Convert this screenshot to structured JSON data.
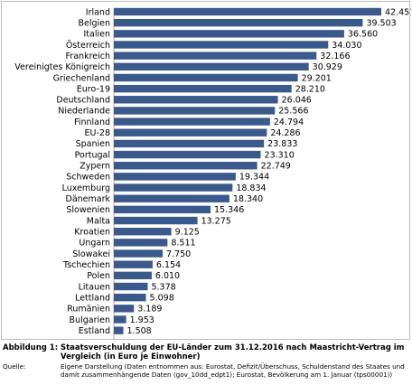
{
  "chart_data": {
    "type": "bar",
    "orientation": "horizontal",
    "title": "",
    "xlabel": "",
    "ylabel": "",
    "xlim": [
      0,
      42451
    ],
    "grid": false,
    "bar_color": "#3a5a8c",
    "categories": [
      "Irland",
      "Belgien",
      "Italien",
      "Österreich",
      "Frankreich",
      "Vereinigtes Königreich",
      "Griechenland",
      "Euro-19",
      "Deutschland",
      "Niederlande",
      "Finnland",
      "EU-28",
      "Spanien",
      "Portugal",
      "Zypern",
      "Schweden",
      "Luxemburg",
      "Dänemark",
      "Slowenien",
      "Malta",
      "Kroatien",
      "Ungarn",
      "Slowakei",
      "Tschechien",
      "Polen",
      "Litauen",
      "Lettland",
      "Rumänien",
      "Bulgarien",
      "Estland"
    ],
    "values": [
      42451,
      39503,
      36560,
      34030,
      32166,
      30929,
      29201,
      28210,
      26046,
      25566,
      24794,
      24286,
      23833,
      23310,
      22749,
      19344,
      18834,
      18340,
      15346,
      13275,
      9125,
      8511,
      7750,
      6154,
      6010,
      5378,
      5098,
      3189,
      1953,
      1508
    ],
    "value_labels": [
      "42.451",
      "39.503",
      "36.560",
      "34.030",
      "32.166",
      "30.929",
      "29.201",
      "28.210",
      "26.046",
      "25.566",
      "24.794",
      "24.286",
      "23.833",
      "23.310",
      "22.749",
      "19.344",
      "18.834",
      "18.340",
      "15.346",
      "13.275",
      "9.125",
      "8.511",
      "7.750",
      "6.154",
      "6.010",
      "5.378",
      "5.098",
      "3.189",
      "1.953",
      "1.508"
    ]
  },
  "caption": {
    "figure_label": "Abbildung 1:",
    "figure_title": "Staatsverschuldung der EU-Länder zum 31.12.2016 nach Maastricht-Vertrag im Vergleich (in Euro je Einwohner)",
    "source_label": "Quelle:",
    "source_text": "Eigene Darstellung (Daten entnommen aus: Eurostat, Defizit/Überschuss, Schuldenstand des Staates und damit zusammenhängende Daten (gov_10dd_edpt1); Eurostat, Bevölkerung am 1. Januar (tps00001))"
  }
}
